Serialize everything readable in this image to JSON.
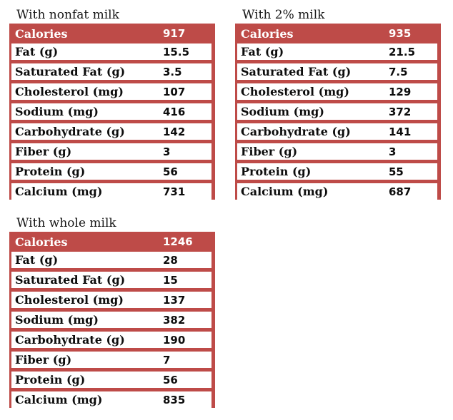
{
  "colors": {
    "table_red": "#BE4B48",
    "header_text": "#ffffff",
    "body_text": "#0d0d0d",
    "page_background": "#ffffff"
  },
  "chart_data": [
    {
      "type": "table",
      "title": "With nonfat milk",
      "header_row": {
        "label": "Calories",
        "value": "917"
      },
      "rows": [
        {
          "label": "Fat (g)",
          "value": "15.5"
        },
        {
          "label": "Saturated Fat (g)",
          "value": "3.5"
        },
        {
          "label": "Cholesterol (mg)",
          "value": "107"
        },
        {
          "label": "Sodium (mg)",
          "value": "416"
        },
        {
          "label": "Carbohydrate (g)",
          "value": "142"
        },
        {
          "label": "Fiber (g)",
          "value": "3"
        },
        {
          "label": "Protein (g)",
          "value": "56"
        },
        {
          "label": "Calcium (mg)",
          "value": "731"
        }
      ]
    },
    {
      "type": "table",
      "title": "With 2% milk",
      "header_row": {
        "label": "Calories",
        "value": "935"
      },
      "rows": [
        {
          "label": "Fat (g)",
          "value": "21.5"
        },
        {
          "label": "Saturated Fat (g)",
          "value": "7.5"
        },
        {
          "label": "Cholesterol (mg)",
          "value": "129"
        },
        {
          "label": "Sodium (mg)",
          "value": "372"
        },
        {
          "label": "Carbohydrate (g)",
          "value": "141"
        },
        {
          "label": "Fiber (g)",
          "value": "3"
        },
        {
          "label": "Protein (g)",
          "value": "55"
        },
        {
          "label": "Calcium (mg)",
          "value": "687"
        }
      ]
    },
    {
      "type": "table",
      "title": "With whole milk",
      "header_row": {
        "label": "Calories",
        "value": "1246"
      },
      "rows": [
        {
          "label": "Fat (g)",
          "value": "28"
        },
        {
          "label": "Saturated Fat (g)",
          "value": "15"
        },
        {
          "label": "Cholesterol (mg)",
          "value": "137"
        },
        {
          "label": "Sodium (mg)",
          "value": "382"
        },
        {
          "label": "Carbohydrate (g)",
          "value": "190"
        },
        {
          "label": "Fiber (g)",
          "value": "7"
        },
        {
          "label": "Protein (g)",
          "value": "56"
        },
        {
          "label": "Calcium (mg)",
          "value": "835"
        }
      ]
    }
  ]
}
